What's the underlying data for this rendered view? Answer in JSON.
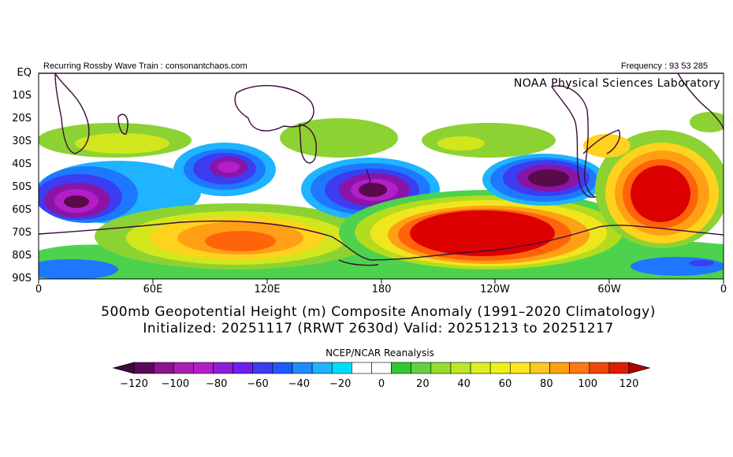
{
  "header": {
    "left_title": "Recurring Rossby Wave Train : consonantchaos.com",
    "frequency": "Frequency : 93 53 285",
    "lab": "NOAA Physical Sciences Laboratory"
  },
  "map": {
    "region": "Southern Hemisphere, 0–360°E, EQ–90S",
    "y_ticks": [
      "EQ",
      "10S",
      "20S",
      "30S",
      "40S",
      "50S",
      "60S",
      "70S",
      "80S",
      "90S"
    ],
    "x_ticks": [
      "0",
      "60E",
      "120E",
      "180",
      "120W",
      "60W",
      "0"
    ],
    "anomaly_centers": [
      {
        "lon": 20,
        "lat": -55,
        "value": -110
      },
      {
        "lon": 95,
        "lat": -43,
        "value": -80
      },
      {
        "lon": 115,
        "lat": -73,
        "value": 80
      },
      {
        "lon": 175,
        "lat": -52,
        "value": -100
      },
      {
        "lon": 245,
        "lat": -71,
        "value": 120
      },
      {
        "lon": 273,
        "lat": -47,
        "value": -120
      },
      {
        "lon": 320,
        "lat": -55,
        "value": 120
      },
      {
        "lon": 265,
        "lat": -29,
        "value": 40
      },
      {
        "lon": 30,
        "lat": -30,
        "value": 40
      }
    ],
    "colors": {
      "neg120": "#5a0a4a",
      "neg100": "#8a14a6",
      "neg80": "#b41ec8",
      "neg60": "#7d1ed2",
      "neg40": "#3c3cf0",
      "neg20": "#1e78ff",
      "neg10": "#1eb4ff",
      "zero": "#ffffff",
      "pos10": "#4cd24c",
      "pos20": "#8cd232",
      "pos30": "#b4dc1e",
      "pos40": "#d2e61e",
      "pos50": "#f0e61e",
      "pos60": "#ffd21e",
      "pos80": "#ffa014",
      "pos100": "#ff640a",
      "pos120": "#dc0000",
      "coast": "#3c0a3c"
    }
  },
  "title": {
    "line1": "500mb Geopotential Height (m) Composite Anomaly (1991–2020 Climatology)",
    "line2": "Initialized: 20251117 (RRWT 2630d) Valid: 20251213 to 20251217"
  },
  "colorbar": {
    "title": "NCEP/NCAR Reanalysis",
    "labels": [
      "−120",
      "−100",
      "−80",
      "−60",
      "−40",
      "−20",
      "0",
      "20",
      "40",
      "60",
      "80",
      "100",
      "120"
    ],
    "segments": [
      "#3c0a3c",
      "#5a0a5a",
      "#8c148c",
      "#aa1eb4",
      "#b41ec8",
      "#8c1edc",
      "#6e1ef0",
      "#3c3cf0",
      "#1e5aff",
      "#1e8cff",
      "#1eb4ff",
      "#00dcff",
      "#ffffff",
      "#ffffff",
      "#32c832",
      "#64d23c",
      "#96dc32",
      "#bee628",
      "#dcf01e",
      "#f0f01e",
      "#ffe61e",
      "#ffc81e",
      "#ffa014",
      "#ff7814",
      "#f0460a",
      "#dc1e00",
      "#b40000"
    ]
  }
}
